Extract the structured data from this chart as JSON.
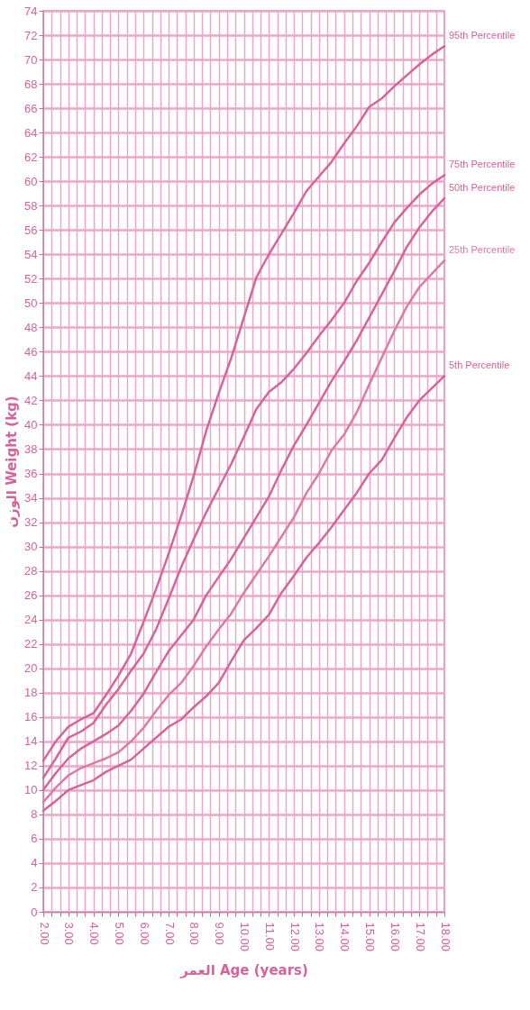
{
  "chart_data": {
    "type": "line",
    "xlabel": "العمر Age (years)",
    "ylabel": "الوزن Weight (kg)",
    "x": [
      2,
      2.5,
      3,
      3.5,
      4,
      4.5,
      5,
      5.5,
      6,
      6.5,
      7,
      7.5,
      8,
      8.5,
      9,
      9.5,
      10,
      10.5,
      11,
      11.5,
      12,
      12.5,
      13,
      13.5,
      14,
      14.5,
      15,
      15.5,
      16,
      16.5,
      17,
      17.5,
      18
    ],
    "series": [
      {
        "name": "95th Percentile",
        "color": "#d6639b",
        "values": [
          12.4,
          14.0,
          15.2,
          15.8,
          16.3,
          17.8,
          19.4,
          21.2,
          23.8,
          26.5,
          29.4,
          32.5,
          35.8,
          39.5,
          42.6,
          45.5,
          48.8,
          52.1,
          54,
          55.7,
          57.4,
          59.2,
          60.4,
          61.6,
          63.1,
          64.5,
          66.1,
          66.8,
          67.8,
          68.7,
          69.6,
          70.4,
          71.1
        ]
      },
      {
        "name": "75th Percentile",
        "color": "#d6639b",
        "values": [
          11,
          12.6,
          14.3,
          14.8,
          15.5,
          17,
          18.3,
          19.8,
          21.2,
          23.2,
          25.7,
          28.3,
          30.6,
          32.8,
          34.8,
          36.8,
          39,
          41.3,
          42.7,
          43.5,
          44.6,
          45.9,
          47.3,
          48.6,
          50,
          51.8,
          53.3,
          55,
          56.6,
          57.8,
          58.9,
          59.8,
          60.5
        ]
      },
      {
        "name": "50th Percentile",
        "color": "#d6639b",
        "values": [
          10,
          11.4,
          12.6,
          13.4,
          14,
          14.6,
          15.3,
          16.5,
          17.9,
          19.7,
          21.4,
          22.7,
          24,
          26,
          27.5,
          29,
          30.7,
          32.4,
          34.1,
          36.3,
          38.3,
          40,
          41.8,
          43.6,
          45.2,
          46.9,
          48.8,
          50.7,
          52.6,
          54.6,
          56.2,
          57.5,
          58.6
        ]
      },
      {
        "name": "25th Percentile",
        "color": "#dc7aa7",
        "values": [
          9,
          10.2,
          11.2,
          11.8,
          12.2,
          12.6,
          13.1,
          14,
          15.1,
          16.5,
          17.8,
          18.8,
          20.2,
          21.8,
          23.2,
          24.5,
          26.2,
          27.7,
          29.2,
          30.8,
          32.4,
          34.4,
          36,
          37.9,
          39.2,
          41,
          43.3,
          45.5,
          47.7,
          49.7,
          51.3,
          52.4,
          53.5
        ]
      },
      {
        "name": "5th Percentile",
        "color": "#d6639b",
        "values": [
          8.3,
          9.1,
          10,
          10.4,
          10.8,
          11.5,
          12,
          12.5,
          13.4,
          14.3,
          15.2,
          15.8,
          16.8,
          17.7,
          18.8,
          20.6,
          22.3,
          23.3,
          24.4,
          26.2,
          27.6,
          29.1,
          30.3,
          31.6,
          33,
          34.4,
          36,
          37.1,
          38.9,
          40.6,
          42,
          43,
          44
        ]
      }
    ],
    "xlim": [
      2,
      18
    ],
    "xticks": [
      {
        "value": 2,
        "label": "2.00"
      },
      {
        "value": 2.333,
        "label": null
      },
      {
        "value": 2.667,
        "label": null
      },
      {
        "value": 3,
        "label": "3.00"
      },
      {
        "value": 3.333,
        "label": null
      },
      {
        "value": 3.667,
        "label": null
      },
      {
        "value": 4,
        "label": "4.00"
      },
      {
        "value": 4.333,
        "label": null
      },
      {
        "value": 4.667,
        "label": null
      },
      {
        "value": 5,
        "label": "5.00"
      },
      {
        "value": 5.333,
        "label": null
      },
      {
        "value": 5.667,
        "label": null
      },
      {
        "value": 6,
        "label": "6.00"
      },
      {
        "value": 6.333,
        "label": null
      },
      {
        "value": 6.667,
        "label": null
      },
      {
        "value": 7,
        "label": "7.00"
      },
      {
        "value": 7.333,
        "label": null
      },
      {
        "value": 7.667,
        "label": null
      },
      {
        "value": 8,
        "label": "8.00"
      },
      {
        "value": 8.333,
        "label": null
      },
      {
        "value": 8.667,
        "label": null
      },
      {
        "value": 9,
        "label": "9.00"
      },
      {
        "value": 9.333,
        "label": null
      },
      {
        "value": 9.667,
        "label": null
      },
      {
        "value": 10,
        "label": "10.00"
      },
      {
        "value": 10.333,
        "label": null
      },
      {
        "value": 10.667,
        "label": null
      },
      {
        "value": 11,
        "label": "11.00"
      },
      {
        "value": 11.333,
        "label": null
      },
      {
        "value": 11.667,
        "label": null
      },
      {
        "value": 12,
        "label": "12.00"
      },
      {
        "value": 12.333,
        "label": null
      },
      {
        "value": 12.667,
        "label": null
      },
      {
        "value": 13,
        "label": "13.00"
      },
      {
        "value": 13.333,
        "label": null
      },
      {
        "value": 13.667,
        "label": null
      },
      {
        "value": 14,
        "label": "14.00"
      },
      {
        "value": 14.333,
        "label": null
      },
      {
        "value": 14.667,
        "label": null
      },
      {
        "value": 15,
        "label": "15.00"
      },
      {
        "value": 15.333,
        "label": null
      },
      {
        "value": 15.667,
        "label": null
      },
      {
        "value": 16,
        "label": "16.00"
      },
      {
        "value": 16.333,
        "label": null
      },
      {
        "value": 16.667,
        "label": null
      },
      {
        "value": 17,
        "label": "17.00"
      },
      {
        "value": 17.333,
        "label": null
      },
      {
        "value": 17.667,
        "label": null
      },
      {
        "value": 18,
        "label": "18.00"
      }
    ],
    "ylim": [
      0,
      74
    ],
    "yticks": [
      0,
      2,
      4,
      6,
      8,
      10,
      12,
      14,
      16,
      18,
      20,
      22,
      24,
      26,
      28,
      30,
      32,
      34,
      36,
      38,
      40,
      42,
      44,
      46,
      48,
      50,
      52,
      54,
      56,
      58,
      60,
      62,
      64,
      66,
      68,
      70,
      72,
      74
    ],
    "grid": true,
    "marker": "none",
    "line_style": "solid"
  }
}
